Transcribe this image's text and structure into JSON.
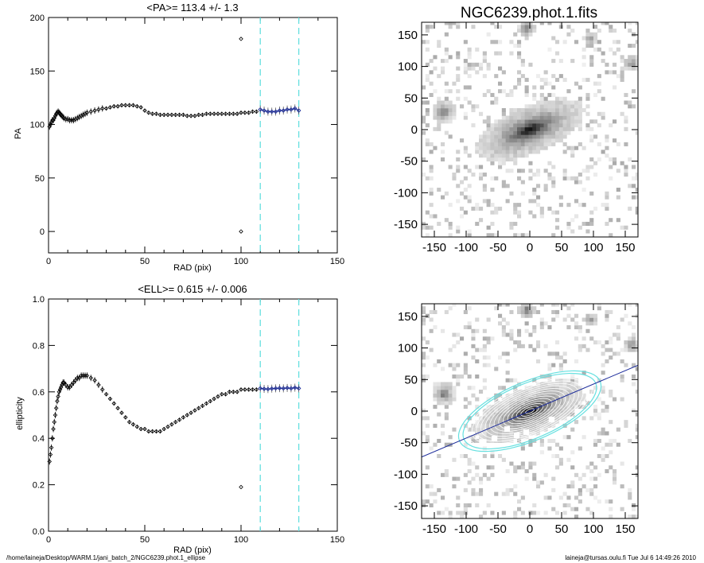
{
  "pa_panel": {
    "title": "<PA>= 113.4 +/-   1.3",
    "xlabel": "RAD (pix)",
    "ylabel": "PA"
  },
  "ell_panel": {
    "title": "<ELL>= 0.615 +/-  0.006",
    "xlabel": "RAD (pix)",
    "ylabel": "ellipticity"
  },
  "image_panel": {
    "title": "NGC6239.phot.1.fits"
  },
  "footer": {
    "path": "/home/laineja/Desktop/WARM.1/jani_batch_2/NGC6239.phot.1_ellipse",
    "stamp": "laineja@tursas.oulu.fi  Tue Jul  6 14:49:26 2010"
  },
  "colors": {
    "fit_range": "#66e0e0",
    "fit_points": "#1a2a9a",
    "contour_outer": "#66e0e0"
  },
  "chart_data": [
    {
      "type": "scatter",
      "title": "<PA>= 113.4 +/-   1.3",
      "xlabel": "RAD (pix)",
      "ylabel": "PA",
      "xlim": [
        0,
        150
      ],
      "ylim": [
        -20,
        200
      ],
      "xticks": [
        0,
        50,
        100,
        150
      ],
      "yticks": [
        0,
        50,
        100,
        150,
        200
      ],
      "grid": false,
      "series": [
        {
          "x": [
            0.5,
            1,
            1.5,
            2,
            2.5,
            3,
            3.5,
            4,
            4.5,
            5,
            5.5,
            6,
            6.5,
            7,
            7.5,
            8,
            9,
            10,
            11,
            12,
            13,
            14,
            15,
            16,
            17,
            18,
            19,
            20,
            22,
            24,
            26,
            28,
            30,
            32,
            34,
            36,
            38,
            40,
            42,
            44,
            46,
            48,
            50,
            52,
            54,
            56,
            58,
            60,
            62,
            64,
            66,
            68,
            70,
            72,
            74,
            76,
            78,
            80,
            82,
            84,
            86,
            88,
            90,
            92,
            94,
            96,
            98,
            100,
            102,
            104,
            106,
            108
          ],
          "y": [
            98,
            100,
            102,
            104,
            104,
            106,
            108,
            110,
            111,
            112,
            111,
            110,
            109,
            108,
            107,
            106,
            105,
            105,
            104,
            104,
            104,
            105,
            106,
            107,
            108,
            109,
            110,
            111,
            112,
            113,
            114,
            115,
            115,
            116,
            117,
            117,
            118,
            118,
            118,
            118,
            117,
            116,
            113,
            111,
            110,
            110,
            109,
            109,
            109,
            109,
            109,
            109,
            109,
            108,
            108,
            108,
            109,
            109,
            110,
            110,
            110,
            110,
            110,
            110,
            110,
            110,
            110,
            111,
            111,
            111,
            112,
            112
          ]
        },
        {
          "x": [
            100,
            100
          ],
          "y": [
            180,
            0
          ]
        },
        {
          "x": [
            110,
            112,
            114,
            116,
            118,
            120,
            122,
            124,
            126,
            128,
            130
          ],
          "y": [
            114,
            113,
            112,
            112,
            112,
            113,
            113,
            114,
            114,
            115,
            113
          ]
        }
      ],
      "fit_range": [
        110,
        130
      ]
    },
    {
      "type": "scatter",
      "title": "<ELL>= 0.615 +/-  0.006",
      "xlabel": "RAD (pix)",
      "ylabel": "ellipticity",
      "xlim": [
        0,
        150
      ],
      "ylim": [
        0.0,
        1.0
      ],
      "xticks": [
        0,
        50,
        100,
        150
      ],
      "yticks": [
        0.0,
        0.2,
        0.4,
        0.6,
        0.8,
        1.0
      ],
      "grid": false,
      "series": [
        {
          "x": [
            0.5,
            1,
            1.5,
            2,
            2.5,
            3,
            3.5,
            4,
            4.5,
            5,
            5.5,
            6,
            6.5,
            7,
            7.5,
            8,
            9,
            10,
            11,
            12,
            13,
            14,
            15,
            16,
            17,
            18,
            19,
            20,
            22,
            24,
            26,
            28,
            30,
            32,
            34,
            36,
            38,
            40,
            42,
            44,
            46,
            48,
            50,
            52,
            54,
            56,
            58,
            60,
            62,
            64,
            66,
            68,
            70,
            72,
            74,
            76,
            78,
            80,
            82,
            84,
            86,
            88,
            90,
            92,
            94,
            96,
            98,
            100,
            102,
            104,
            106,
            108
          ],
          "y": [
            0.3,
            0.33,
            0.36,
            0.4,
            0.44,
            0.47,
            0.5,
            0.53,
            0.56,
            0.58,
            0.6,
            0.61,
            0.62,
            0.63,
            0.64,
            0.64,
            0.63,
            0.62,
            0.62,
            0.63,
            0.64,
            0.65,
            0.66,
            0.66,
            0.67,
            0.67,
            0.67,
            0.67,
            0.66,
            0.65,
            0.63,
            0.61,
            0.59,
            0.57,
            0.55,
            0.53,
            0.51,
            0.49,
            0.47,
            0.46,
            0.45,
            0.44,
            0.44,
            0.43,
            0.43,
            0.43,
            0.43,
            0.44,
            0.45,
            0.46,
            0.47,
            0.48,
            0.49,
            0.5,
            0.51,
            0.52,
            0.53,
            0.54,
            0.55,
            0.56,
            0.57,
            0.58,
            0.59,
            0.59,
            0.6,
            0.6,
            0.6,
            0.61,
            0.61,
            0.61,
            0.61,
            0.61
          ]
        },
        {
          "x": [
            100
          ],
          "y": [
            0.19
          ]
        },
        {
          "x": [
            110,
            112,
            114,
            116,
            118,
            120,
            122,
            124,
            126,
            128,
            130
          ],
          "y": [
            0.615,
            0.613,
            0.612,
            0.614,
            0.615,
            0.616,
            0.615,
            0.617,
            0.615,
            0.618,
            0.615
          ]
        }
      ],
      "fit_range": [
        110,
        130
      ]
    },
    {
      "type": "heatmap",
      "title": "NGC6239.phot.1.fits",
      "xlim": [
        -170,
        170
      ],
      "ylim": [
        -170,
        170
      ],
      "xticks": [
        -150,
        -100,
        -50,
        0,
        50,
        100,
        150
      ],
      "yticks": [
        -150,
        -100,
        -50,
        0,
        50,
        100,
        150
      ],
      "galaxy": {
        "pa_deg": 113.4,
        "ellipticity": 0.615
      }
    },
    {
      "type": "heatmap",
      "title": "",
      "xlim": [
        -170,
        170
      ],
      "ylim": [
        -170,
        170
      ],
      "xticks": [
        -150,
        -100,
        -50,
        0,
        50,
        100,
        150
      ],
      "yticks": [
        -150,
        -100,
        -50,
        0,
        50,
        100,
        150
      ],
      "galaxy": {
        "pa_deg": 113.4,
        "ellipticity": 0.615
      },
      "overlay": "isophote contours with major-axis line"
    }
  ]
}
